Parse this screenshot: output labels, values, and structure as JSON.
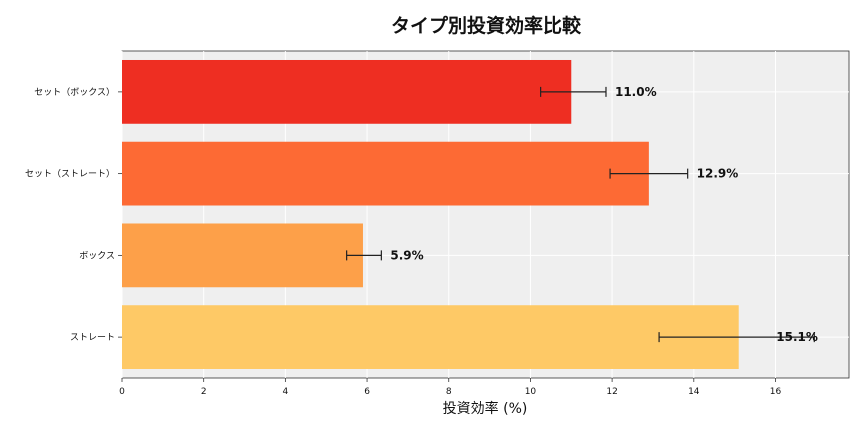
{
  "chart_data": {
    "type": "bar",
    "orientation": "horizontal",
    "title": "タイプ別投資効率比較",
    "xlabel": "投資効率 (%)",
    "ylabel": "",
    "xlim": [
      0,
      17.8
    ],
    "xticks": [
      0,
      2,
      4,
      6,
      8,
      10,
      12,
      14,
      16
    ],
    "grid": true,
    "categories": [
      "セット（ボックス）",
      "セット（ストレート）",
      "ボックス",
      "ストレート"
    ],
    "values": [
      11.0,
      12.9,
      5.9,
      15.1
    ],
    "error_low": [
      10.25,
      11.95,
      5.5,
      13.15
    ],
    "error_high": [
      11.85,
      13.85,
      6.35,
      16.95
    ],
    "data_labels": [
      "11.0%",
      "12.9%",
      "5.9%",
      "15.1%"
    ],
    "colors": [
      "#ee2e22",
      "#fd6a34",
      "#fda049",
      "#fec966"
    ]
  }
}
